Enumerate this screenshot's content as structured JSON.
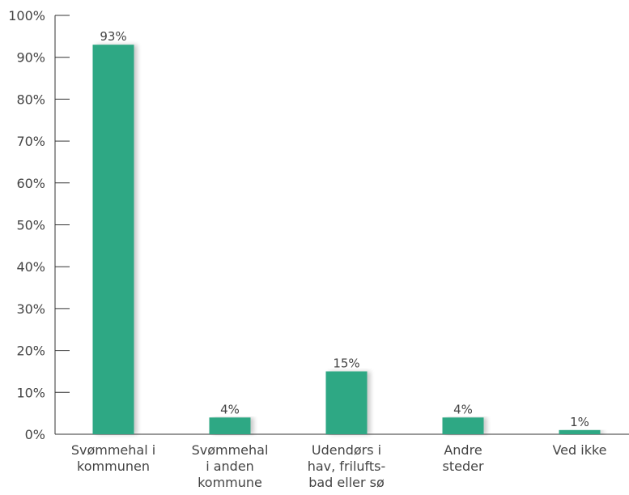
{
  "chart_data": {
    "type": "bar",
    "title": "",
    "xlabel": "",
    "ylabel": "",
    "categories": [
      [
        "Svømmehal i",
        "kommunen"
      ],
      [
        "Svømmehal",
        "i anden",
        "kommune"
      ],
      [
        "Udendørs i",
        "hav, frilufts-",
        "bad eller sø"
      ],
      [
        "Andre",
        "steder"
      ],
      [
        "Ved ikke"
      ]
    ],
    "values": [
      93,
      4,
      15,
      4,
      1
    ],
    "value_labels": [
      "93%",
      "4%",
      "15%",
      "4%",
      "1%"
    ],
    "ylim": [
      0,
      100
    ],
    "yticks": [
      0,
      10,
      20,
      30,
      40,
      50,
      60,
      70,
      80,
      90,
      100
    ],
    "ytick_labels": [
      "0%",
      "10%",
      "20%",
      "30%",
      "40%",
      "50%",
      "60%",
      "70%",
      "80%",
      "90%",
      "100%"
    ],
    "grid": false,
    "legend": "none",
    "bar_color": "#2fa884",
    "axis_color": "#333333",
    "text_color": "#444444"
  }
}
